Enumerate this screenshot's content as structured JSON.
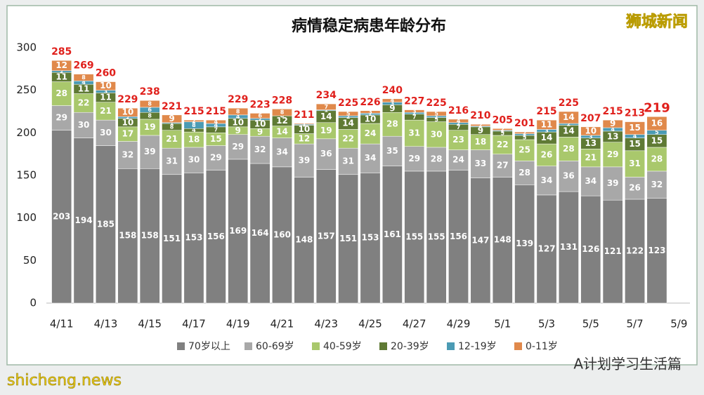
{
  "chart_data": {
    "type": "stacked-bar",
    "title": "病情稳定病患年龄分布",
    "categories": [
      "4/11",
      null,
      "4/13",
      null,
      "4/15",
      null,
      "4/17",
      null,
      "4/19",
      null,
      "4/21",
      null,
      "4/23",
      null,
      "4/25",
      null,
      "4/27",
      null,
      "4/29",
      null,
      "5/1",
      null,
      "5/3",
      null,
      "5/5",
      null,
      "5/7",
      null,
      "5/9"
    ],
    "series": [
      {
        "name": "70岁以上",
        "color": "#808080",
        "values": [
          203,
          194,
          185,
          158,
          158,
          151,
          153,
          156,
          169,
          164,
          160,
          148,
          157,
          151,
          153,
          161,
          155,
          155,
          156,
          147,
          148,
          139,
          127,
          131,
          126,
          121,
          122,
          123,
          null
        ]
      },
      {
        "name": "60-69岁",
        "color": "#a8a8a8",
        "values": [
          29,
          30,
          30,
          32,
          39,
          31,
          30,
          29,
          29,
          32,
          34,
          39,
          36,
          31,
          34,
          35,
          29,
          28,
          24,
          33,
          27,
          28,
          34,
          36,
          34,
          39,
          26,
          32,
          null
        ]
      },
      {
        "name": "40-59岁",
        "color": "#a9c86c",
        "values": [
          28,
          22,
          21,
          17,
          19,
          21,
          18,
          15,
          9,
          9,
          14,
          12,
          19,
          22,
          24,
          28,
          31,
          30,
          23,
          18,
          22,
          25,
          26,
          28,
          21,
          29,
          31,
          28,
          null
        ]
      },
      {
        "name": "20-39岁",
        "color": "#5f7a34",
        "values": [
          11,
          11,
          11,
          10,
          8,
          8,
          4,
          7,
          10,
          10,
          12,
          10,
          14,
          14,
          10,
          9,
          7,
          5,
          7,
          9,
          5,
          5,
          14,
          14,
          13,
          13,
          15,
          15,
          null
        ]
      },
      {
        "name": "12-19岁",
        "color": "#4b9bb4",
        "values": [
          2,
          4,
          3,
          2,
          6,
          1,
          8,
          4,
          4,
          2,
          0,
          1,
          1,
          2,
          2,
          3,
          2,
          2,
          2,
          1,
          1,
          2,
          3,
          2,
          3,
          4,
          4,
          5,
          null
        ]
      },
      {
        "name": "0-11岁",
        "color": "#e0894b",
        "values": [
          12,
          8,
          10,
          10,
          8,
          9,
          2,
          4,
          8,
          6,
          8,
          1,
          7,
          5,
          3,
          4,
          3,
          5,
          4,
          2,
          2,
          2,
          11,
          14,
          10,
          9,
          15,
          16,
          null
        ]
      }
    ],
    "totals": [
      285,
      269,
      260,
      229,
      238,
      221,
      215,
      215,
      229,
      223,
      228,
      211,
      234,
      225,
      226,
      240,
      227,
      225,
      216,
      210,
      205,
      201,
      215,
      225,
      207,
      215,
      213,
      219,
      null
    ],
    "ylim": [
      0,
      300
    ],
    "yticks": [
      0,
      50,
      100,
      150,
      200,
      250,
      300
    ],
    "grid": false,
    "legend": "bottom"
  },
  "watermarks": {
    "top_right": "狮城新闻",
    "bottom_left": "shicheng.news",
    "bottom_right": "A计划学习生活篇"
  }
}
